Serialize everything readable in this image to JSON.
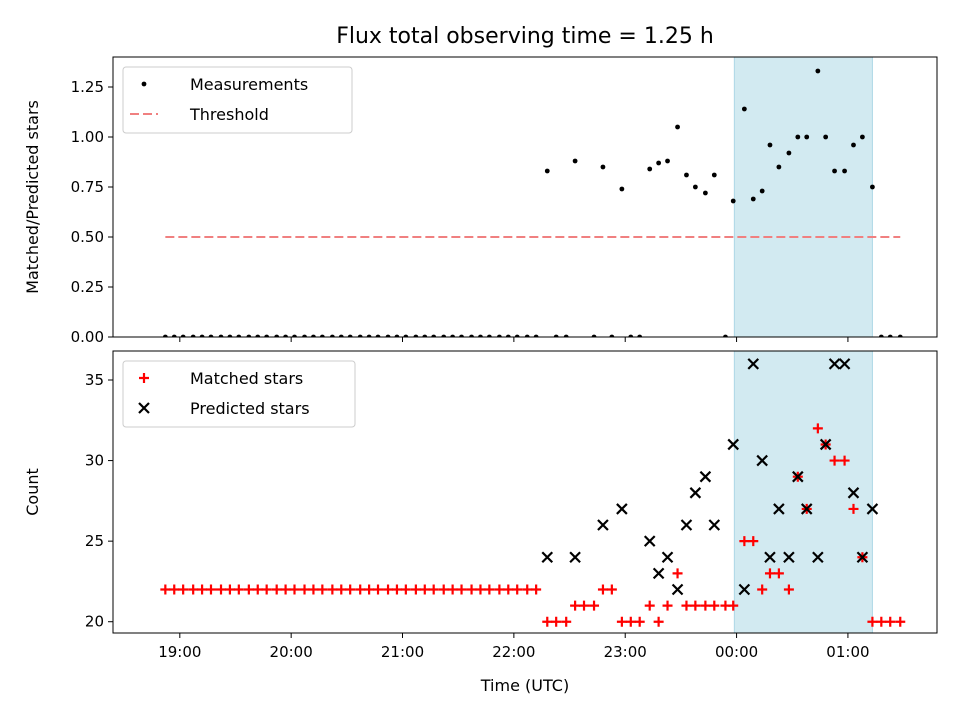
{
  "chart_data": [
    {
      "type": "scatter",
      "title": "Flux total observing time = 1.25 h",
      "xlabel": "",
      "ylabel": "Matched/Predicted stars",
      "x_unit": "hours (UTC, 24+ = next day)",
      "xlim": [
        18.4,
        25.8
      ],
      "ylim": [
        0.0,
        1.4
      ],
      "yticks": [
        "0.00",
        "0.25",
        "0.50",
        "0.75",
        "1.00",
        "1.25"
      ],
      "yticks_values": [
        0,
        0.25,
        0.5,
        0.75,
        1.0,
        1.25
      ],
      "xtick_values": [
        19,
        20,
        21,
        22,
        23,
        24,
        25
      ],
      "shaded_region": {
        "x0": 23.98,
        "x1": 25.22,
        "color": "#add8e6"
      },
      "legend": {
        "location": "upper left",
        "entries": [
          "Measurements",
          "Threshold"
        ]
      },
      "series": [
        {
          "name": "Measurements",
          "color": "#000000",
          "marker": "dot",
          "points": [
            [
              18.87,
              0
            ],
            [
              18.95,
              0
            ],
            [
              19.03,
              0
            ],
            [
              19.12,
              0
            ],
            [
              19.2,
              0
            ],
            [
              19.28,
              0
            ],
            [
              19.37,
              0
            ],
            [
              19.45,
              0
            ],
            [
              19.53,
              0
            ],
            [
              19.62,
              0
            ],
            [
              19.7,
              0
            ],
            [
              19.78,
              0
            ],
            [
              19.87,
              0
            ],
            [
              19.95,
              0
            ],
            [
              20.03,
              0
            ],
            [
              20.12,
              0
            ],
            [
              20.2,
              0
            ],
            [
              20.28,
              0
            ],
            [
              20.37,
              0
            ],
            [
              20.45,
              0
            ],
            [
              20.53,
              0
            ],
            [
              20.62,
              0
            ],
            [
              20.7,
              0
            ],
            [
              20.78,
              0
            ],
            [
              20.87,
              0
            ],
            [
              20.95,
              0
            ],
            [
              21.03,
              0
            ],
            [
              21.12,
              0
            ],
            [
              21.2,
              0
            ],
            [
              21.28,
              0
            ],
            [
              21.37,
              0
            ],
            [
              21.45,
              0
            ],
            [
              21.53,
              0
            ],
            [
              21.62,
              0
            ],
            [
              21.7,
              0
            ],
            [
              21.78,
              0
            ],
            [
              21.87,
              0
            ],
            [
              21.95,
              0
            ],
            [
              22.03,
              0
            ],
            [
              22.12,
              0
            ],
            [
              22.2,
              0
            ],
            [
              22.3,
              0.83
            ],
            [
              22.38,
              0
            ],
            [
              22.47,
              0
            ],
            [
              22.55,
              0.88
            ],
            [
              22.72,
              0
            ],
            [
              22.8,
              0.85
            ],
            [
              22.88,
              0
            ],
            [
              22.97,
              0.74
            ],
            [
              23.05,
              0
            ],
            [
              23.13,
              0
            ],
            [
              23.22,
              0.84
            ],
            [
              23.3,
              0.87
            ],
            [
              23.38,
              0.88
            ],
            [
              23.47,
              1.05
            ],
            [
              23.55,
              0.81
            ],
            [
              23.63,
              0.75
            ],
            [
              23.72,
              0.72
            ],
            [
              23.8,
              0.81
            ],
            [
              23.9,
              0
            ],
            [
              23.97,
              0.68
            ],
            [
              24.07,
              1.14
            ],
            [
              24.15,
              0.69
            ],
            [
              24.23,
              0.73
            ],
            [
              24.3,
              0.96
            ],
            [
              24.38,
              0.85
            ],
            [
              24.47,
              0.92
            ],
            [
              24.55,
              1.0
            ],
            [
              24.63,
              1.0
            ],
            [
              24.73,
              1.33
            ],
            [
              24.8,
              1.0
            ],
            [
              24.88,
              0.83
            ],
            [
              24.97,
              0.83
            ],
            [
              25.05,
              0.96
            ],
            [
              25.13,
              1.0
            ],
            [
              25.22,
              0.75
            ],
            [
              25.3,
              0
            ],
            [
              25.38,
              0
            ],
            [
              25.47,
              0
            ]
          ]
        },
        {
          "name": "Threshold",
          "color": "#f08080",
          "style": "dashed",
          "points": [
            [
              18.87,
              0.5
            ],
            [
              25.47,
              0.5
            ]
          ]
        }
      ]
    },
    {
      "type": "scatter",
      "title": "",
      "xlabel": "Time (UTC)",
      "ylabel": "Count",
      "xlim": [
        18.4,
        25.8
      ],
      "ylim": [
        19.3,
        36.8
      ],
      "yticks": [
        "20",
        "25",
        "30",
        "35"
      ],
      "yticks_values": [
        20,
        25,
        30,
        35
      ],
      "xticks": [
        "19:00",
        "20:00",
        "21:00",
        "22:00",
        "23:00",
        "00:00",
        "01:00"
      ],
      "xtick_values": [
        19,
        20,
        21,
        22,
        23,
        24,
        25
      ],
      "shaded_region": {
        "x0": 23.98,
        "x1": 25.22,
        "color": "#add8e6"
      },
      "legend": {
        "location": "upper left",
        "entries": [
          "Matched stars",
          "Predicted stars"
        ]
      },
      "series": [
        {
          "name": "Matched stars",
          "color": "#ff0000",
          "marker": "plus",
          "points": [
            [
              18.87,
              22
            ],
            [
              18.95,
              22
            ],
            [
              19.03,
              22
            ],
            [
              19.12,
              22
            ],
            [
              19.2,
              22
            ],
            [
              19.28,
              22
            ],
            [
              19.37,
              22
            ],
            [
              19.45,
              22
            ],
            [
              19.53,
              22
            ],
            [
              19.62,
              22
            ],
            [
              19.7,
              22
            ],
            [
              19.78,
              22
            ],
            [
              19.87,
              22
            ],
            [
              19.95,
              22
            ],
            [
              20.03,
              22
            ],
            [
              20.12,
              22
            ],
            [
              20.2,
              22
            ],
            [
              20.28,
              22
            ],
            [
              20.37,
              22
            ],
            [
              20.45,
              22
            ],
            [
              20.53,
              22
            ],
            [
              20.62,
              22
            ],
            [
              20.7,
              22
            ],
            [
              20.78,
              22
            ],
            [
              20.87,
              22
            ],
            [
              20.95,
              22
            ],
            [
              21.03,
              22
            ],
            [
              21.12,
              22
            ],
            [
              21.2,
              22
            ],
            [
              21.28,
              22
            ],
            [
              21.37,
              22
            ],
            [
              21.45,
              22
            ],
            [
              21.53,
              22
            ],
            [
              21.62,
              22
            ],
            [
              21.7,
              22
            ],
            [
              21.78,
              22
            ],
            [
              21.87,
              22
            ],
            [
              21.95,
              22
            ],
            [
              22.03,
              22
            ],
            [
              22.12,
              22
            ],
            [
              22.2,
              22
            ],
            [
              22.3,
              20
            ],
            [
              22.38,
              20
            ],
            [
              22.47,
              20
            ],
            [
              22.55,
              21
            ],
            [
              22.63,
              21
            ],
            [
              22.72,
              21
            ],
            [
              22.8,
              22
            ],
            [
              22.88,
              22
            ],
            [
              22.97,
              20
            ],
            [
              23.05,
              20
            ],
            [
              23.13,
              20
            ],
            [
              23.22,
              21
            ],
            [
              23.3,
              20
            ],
            [
              23.38,
              21
            ],
            [
              23.47,
              23
            ],
            [
              23.55,
              21
            ],
            [
              23.63,
              21
            ],
            [
              23.72,
              21
            ],
            [
              23.8,
              21
            ],
            [
              23.9,
              21
            ],
            [
              23.97,
              21
            ],
            [
              24.07,
              25
            ],
            [
              24.15,
              25
            ],
            [
              24.23,
              22
            ],
            [
              24.3,
              23
            ],
            [
              24.38,
              23
            ],
            [
              24.47,
              22
            ],
            [
              24.55,
              29
            ],
            [
              24.63,
              27
            ],
            [
              24.73,
              32
            ],
            [
              24.8,
              31
            ],
            [
              24.88,
              30
            ],
            [
              24.97,
              30
            ],
            [
              25.05,
              27
            ],
            [
              25.13,
              24
            ],
            [
              25.22,
              20
            ],
            [
              25.3,
              20
            ],
            [
              25.38,
              20
            ],
            [
              25.47,
              20
            ]
          ]
        },
        {
          "name": "Predicted stars",
          "color": "#000000",
          "marker": "x",
          "points": [
            [
              22.3,
              24
            ],
            [
              22.55,
              24
            ],
            [
              22.8,
              26
            ],
            [
              22.97,
              27
            ],
            [
              23.22,
              25
            ],
            [
              23.3,
              23
            ],
            [
              23.38,
              24
            ],
            [
              23.47,
              22
            ],
            [
              23.55,
              26
            ],
            [
              23.63,
              28
            ],
            [
              23.72,
              29
            ],
            [
              23.8,
              26
            ],
            [
              23.97,
              31
            ],
            [
              24.07,
              22
            ],
            [
              24.15,
              36
            ],
            [
              24.23,
              30
            ],
            [
              24.3,
              24
            ],
            [
              24.38,
              27
            ],
            [
              24.47,
              24
            ],
            [
              24.55,
              29
            ],
            [
              24.63,
              27
            ],
            [
              24.73,
              24
            ],
            [
              24.8,
              31
            ],
            [
              24.88,
              36
            ],
            [
              24.97,
              36
            ],
            [
              25.05,
              28
            ],
            [
              25.13,
              24
            ],
            [
              25.22,
              27
            ]
          ]
        }
      ]
    }
  ]
}
